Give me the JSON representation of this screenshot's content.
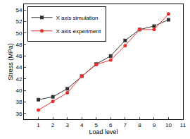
{
  "chart_data": {
    "type": "line",
    "x_label": "Load level",
    "y_label": "Stress (MPa)",
    "x": [
      1,
      2,
      3,
      4,
      5,
      6,
      7,
      8,
      9,
      10
    ],
    "series": [
      {
        "name": "X axis simulation",
        "color": "#333333",
        "marker": "square",
        "values": [
          38.4,
          38.9,
          40.3,
          42.5,
          44.6,
          46.0,
          48.7,
          50.6,
          51.2,
          52.3
        ]
      },
      {
        "name": "X axis experiment",
        "color": "#e8312f",
        "marker": "circle",
        "values": [
          36.6,
          38.1,
          39.6,
          42.5,
          44.5,
          45.3,
          47.8,
          50.6,
          50.6,
          53.3
        ]
      }
    ],
    "xlim": [
      0,
      11
    ],
    "xticks": [
      1,
      2,
      3,
      4,
      5,
      6,
      7,
      8,
      9,
      10,
      11
    ],
    "ylim": [
      35,
      55
    ],
    "yticks": [
      36,
      38,
      40,
      42,
      44,
      46,
      48,
      50,
      52,
      54
    ],
    "grid": false,
    "legend": "upper left"
  }
}
